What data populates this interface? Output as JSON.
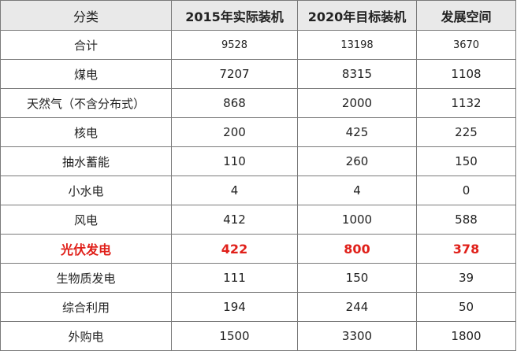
{
  "table": {
    "headers": [
      "分类",
      "2015年实际装机",
      "2020年目标装机",
      "发展空间"
    ],
    "rows": [
      {
        "category": "合计",
        "actual_2015": "9528",
        "target_2020": "13198",
        "space": "3670"
      },
      {
        "category": "煤电",
        "actual_2015": "7207",
        "target_2020": "8315",
        "space": "1108"
      },
      {
        "category": "天然气（不含分布式）",
        "actual_2015": "868",
        "target_2020": "2000",
        "space": "1132"
      },
      {
        "category": "核电",
        "actual_2015": "200",
        "target_2020": "425",
        "space": "225"
      },
      {
        "category": "抽水蓄能",
        "actual_2015": "110",
        "target_2020": "260",
        "space": "150"
      },
      {
        "category": "小水电",
        "actual_2015": "4",
        "target_2020": "4",
        "space": "0"
      },
      {
        "category": "风电",
        "actual_2015": "412",
        "target_2020": "1000",
        "space": "588"
      },
      {
        "category": "光伏发电",
        "actual_2015": "422",
        "target_2020": "800",
        "space": "378"
      },
      {
        "category": "生物质发电",
        "actual_2015": "111",
        "target_2020": "150",
        "space": "39"
      },
      {
        "category": "综合利用",
        "actual_2015": "194",
        "target_2020": "244",
        "space": "50"
      },
      {
        "category": "外购电",
        "actual_2015": "1500",
        "target_2020": "3300",
        "space": "1800"
      }
    ],
    "highlight_color": "#e0201a",
    "header_background": "#e9e9e9",
    "border_color": "#7a7a7a"
  }
}
